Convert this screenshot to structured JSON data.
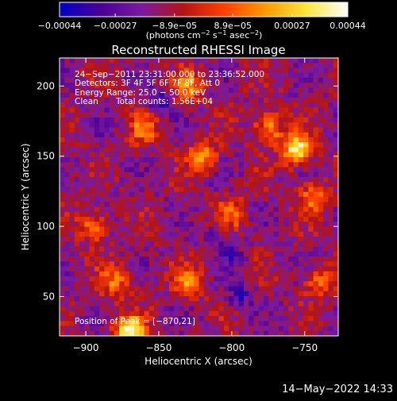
{
  "chart_data": {
    "type": "heatmap",
    "title": "Reconstructed RHESSI Image",
    "xlabel": "Heliocentric X (arcsec)",
    "ylabel": "Heliocentric Y (arcsec)",
    "xlim": [
      -918,
      -727
    ],
    "ylim": [
      22,
      220
    ],
    "x_ticks": [
      -900,
      -850,
      -800,
      -750
    ],
    "y_ticks": [
      50,
      100,
      150,
      200
    ],
    "x_tick_labels": [
      "−900",
      "−850",
      "−800",
      "−750"
    ],
    "y_tick_labels": [
      "50",
      "100",
      "150",
      "200"
    ],
    "colorbar": {
      "range": [
        -0.00044,
        0.00044
      ],
      "tick_values": [
        -0.00044,
        -0.00027,
        -8.9e-05,
        8.9e-05,
        0.00027,
        0.00044
      ],
      "tick_labels": [
        "−0.00044",
        "−0.00027",
        "−8.9e−05",
        "8.9e−05",
        "0.00027",
        "0.00044"
      ],
      "unit_prefix": "(photons cm",
      "unit_exp1": "−2",
      "unit_mid": " s",
      "unit_exp2": "−1",
      "unit_mid2": " asec",
      "unit_exp3": "−2",
      "unit_suffix": ")",
      "colors": [
        "#0000c8",
        "#4b0096",
        "#7a1aa0",
        "#b41414",
        "#ff4000",
        "#ff9a00",
        "#ffe640",
        "#ffffff"
      ]
    },
    "annotations": {
      "time_range": "24−Sep−2011 23:31:00.000 to 23:36:52.000",
      "detectors": "Detectors: 3F 4F 5F 6F 7F 8F, Att 0",
      "energy": "Energy Range: 25.0 − 50.0 keV",
      "algorithm": "Clean",
      "counts": "Total counts: 1.56E+04",
      "peak": "Position of Peak = [−870,21]"
    },
    "peak": {
      "x": -870,
      "y": 21
    },
    "hotspots": [
      {
        "x": -870,
        "y": 25,
        "strength": 1.0
      },
      {
        "x": -755,
        "y": 155,
        "strength": 0.95
      },
      {
        "x": -775,
        "y": 170,
        "strength": 0.6
      },
      {
        "x": -820,
        "y": 150,
        "strength": 0.55
      },
      {
        "x": -830,
        "y": 200,
        "strength": 0.5
      },
      {
        "x": -745,
        "y": 120,
        "strength": 0.5
      },
      {
        "x": -895,
        "y": 100,
        "strength": 0.5
      },
      {
        "x": -860,
        "y": 170,
        "strength": 0.45
      },
      {
        "x": -830,
        "y": 60,
        "strength": 0.5
      },
      {
        "x": -800,
        "y": 110,
        "strength": 0.4
      },
      {
        "x": -740,
        "y": 60,
        "strength": 0.45
      },
      {
        "x": -880,
        "y": 60,
        "strength": 0.45
      }
    ],
    "coldspots": [
      {
        "x": -850,
        "y": 190,
        "strength": 0.7
      },
      {
        "x": -795,
        "y": 50,
        "strength": 0.6
      },
      {
        "x": -800,
        "y": 80,
        "strength": 0.4
      },
      {
        "x": -810,
        "y": 95,
        "strength": 0.35
      }
    ]
  },
  "footer": {
    "timestamp": "14−May−2022 14:33"
  }
}
